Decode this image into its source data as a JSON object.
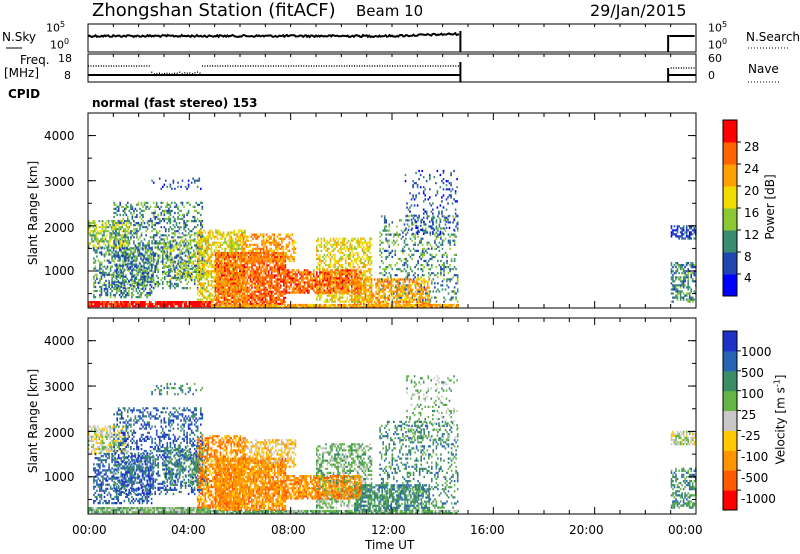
{
  "header": {
    "title": "Zhongshan Station (fitACF)",
    "beam": "Beam 10",
    "date": "29/Jan/2015"
  },
  "nsky_panel": {
    "left_label": "N.Sky",
    "right_label": "N.Search",
    "left_ticks": [
      "10^5",
      "10^0"
    ],
    "right_ticks": [
      "10^5",
      "10^0"
    ]
  },
  "freq_panel": {
    "left_label": "Freq.",
    "left_unit": "[MHz]",
    "left_ticks": [
      "18",
      "8"
    ],
    "right_label": "Nave",
    "right_ticks": [
      "60",
      "0"
    ]
  },
  "cpid": {
    "label": "CPID",
    "mode": "normal (fast stereo) 153"
  },
  "chart_data": [
    {
      "type": "heatmap",
      "name": "power",
      "ylabel": "Slant Range [km]",
      "xlabel": "",
      "x_range_hours": [
        0,
        24
      ],
      "ylim": [
        180,
        4500
      ],
      "yticks": [
        "4000",
        "3000",
        "2000",
        "1000"
      ],
      "colorbar_label": "Power [dB]",
      "colorbar_ticks": [
        "28",
        "24",
        "20",
        "16",
        "12",
        "8",
        "4"
      ],
      "colorbar_colors": [
        "#0000ff",
        "#2046b4",
        "#3a8c70",
        "#8cc832",
        "#f0dc00",
        "#ffa000",
        "#ff6400",
        "#ff0000"
      ],
      "data_gap_hours": [
        14.7,
        22.9
      ]
    },
    {
      "type": "heatmap",
      "name": "velocity",
      "ylabel": "Slant Range [km]",
      "xlabel": "Time UT",
      "x_range_hours": [
        0,
        24
      ],
      "xticks": [
        "00:00",
        "04:00",
        "08:00",
        "12:00",
        "16:00",
        "20:00",
        "00:00"
      ],
      "ylim": [
        180,
        4500
      ],
      "yticks": [
        "4000",
        "3000",
        "2000",
        "1000"
      ],
      "colorbar_label": "Velocity [m s^-1]",
      "colorbar_ticks": [
        "1000",
        "500",
        "100",
        "25",
        "-25",
        "-100",
        "-500",
        "-1000"
      ],
      "colorbar_colors": [
        "#1e32c8",
        "#2864b4",
        "#3c8c64",
        "#64b446",
        "#c8c8c8",
        "#ffc800",
        "#ff9600",
        "#ff5a00",
        "#ff0000"
      ],
      "data_gap_hours": [
        14.7,
        22.9
      ]
    }
  ]
}
